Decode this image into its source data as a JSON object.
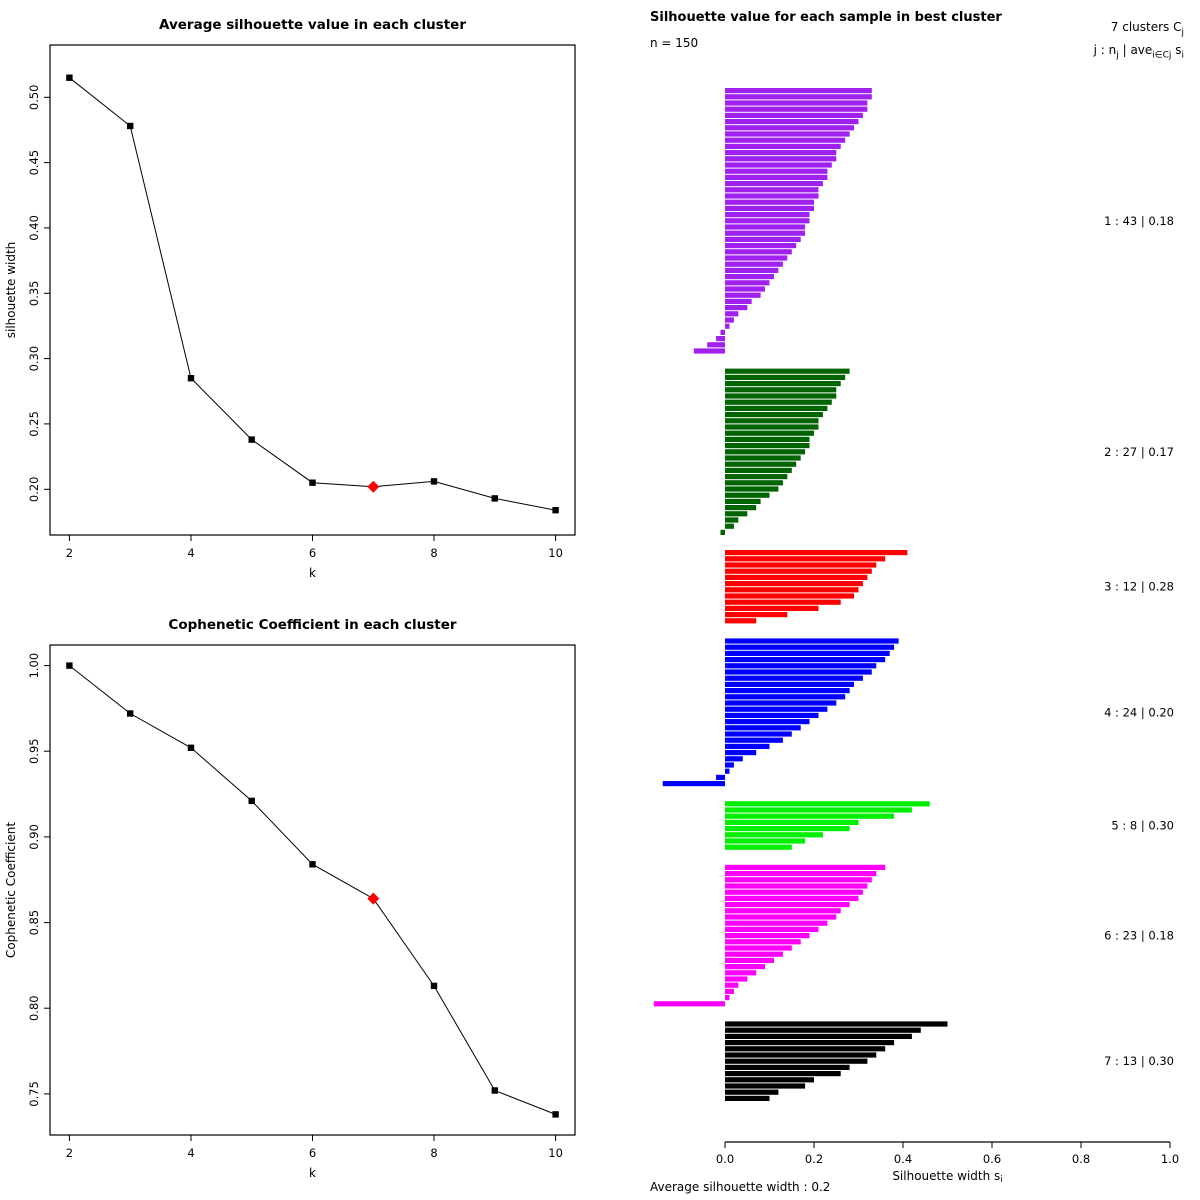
{
  "figure": {
    "background": "#ffffff",
    "text_color": "#000000"
  },
  "chart_data": [
    {
      "id": "avg_silhouette_by_k",
      "type": "line",
      "title": "Average silhouette value in each cluster",
      "xlabel": "k",
      "ylabel": "silhouette width",
      "x": [
        2,
        3,
        4,
        5,
        6,
        7,
        8,
        9,
        10
      ],
      "y": [
        0.515,
        0.478,
        0.285,
        0.238,
        0.205,
        0.202,
        0.206,
        0.193,
        0.184
      ],
      "xticks": [
        2,
        4,
        6,
        8,
        10
      ],
      "yticks": [
        "0.20",
        "0.25",
        "0.30",
        "0.35",
        "0.40",
        "0.45",
        "0.50"
      ],
      "ytick_vals": [
        0.2,
        0.25,
        0.3,
        0.35,
        0.4,
        0.45,
        0.5
      ],
      "xlim": [
        1.68,
        10.32
      ],
      "ylim": [
        0.165,
        0.54
      ],
      "highlight": {
        "x": 7,
        "color": "#ff0000",
        "shape": "diamond"
      },
      "line_color": "#000000",
      "marker_color": "#000000",
      "grid": false,
      "legend": "none"
    },
    {
      "id": "cophenetic_by_k",
      "type": "line",
      "title": "Cophenetic Coefficient in each cluster",
      "xlabel": "k",
      "ylabel": "Cophenetic Coefficient",
      "x": [
        2,
        3,
        4,
        5,
        6,
        7,
        8,
        9,
        10
      ],
      "y": [
        1.0,
        0.972,
        0.952,
        0.921,
        0.884,
        0.864,
        0.813,
        0.752,
        0.738
      ],
      "xticks": [
        2,
        4,
        6,
        8,
        10
      ],
      "yticks": [
        "0.75",
        "0.80",
        "0.85",
        "0.90",
        "0.95",
        "1.00"
      ],
      "ytick_vals": [
        0.75,
        0.8,
        0.85,
        0.9,
        0.95,
        1.0
      ],
      "xlim": [
        1.68,
        10.32
      ],
      "ylim": [
        0.726,
        1.012
      ],
      "highlight": {
        "x": 7,
        "color": "#ff0000",
        "shape": "diamond"
      },
      "line_color": "#000000",
      "marker_color": "#000000",
      "grid": false,
      "legend": "none"
    },
    {
      "id": "silhouette_samples",
      "type": "bar",
      "orientation": "horizontal",
      "title": "Silhouette value for each sample in best cluster",
      "n_label": "n = 150",
      "header_right": {
        "line1_text": "7 clusters C",
        "line1_sub": "j",
        "line2_seg1": "j :  n",
        "line2_seg1_sub": "j",
        "line2_seg2": " | ave",
        "line2_seg2_sub": "i∈Cj",
        "line2_seg3": "  s",
        "line2_seg3_sub": "i"
      },
      "xlabel_main": "Silhouette width s",
      "xlabel_sub": "i",
      "xticks": [
        "0.0",
        "0.2",
        "0.4",
        "0.6",
        "0.8",
        "1.0"
      ],
      "xtick_vals": [
        0,
        0.2,
        0.4,
        0.6,
        0.8,
        1.0
      ],
      "xlim": [
        0,
        1
      ],
      "footer_label": "Average silhouette width :  ",
      "footer_value": "0.2",
      "clusters": [
        {
          "j": 1,
          "n": 43,
          "avg": "0.18",
          "label": "1 :  43  |  0.18",
          "color": "#A020F0",
          "values": [
            0.33,
            0.33,
            0.32,
            0.32,
            0.31,
            0.3,
            0.29,
            0.28,
            0.27,
            0.26,
            0.25,
            0.25,
            0.24,
            0.23,
            0.23,
            0.22,
            0.21,
            0.21,
            0.2,
            0.2,
            0.19,
            0.19,
            0.18,
            0.18,
            0.17,
            0.16,
            0.15,
            0.14,
            0.13,
            0.12,
            0.11,
            0.1,
            0.09,
            0.08,
            0.06,
            0.05,
            0.03,
            0.02,
            0.01,
            -0.01,
            -0.02,
            -0.04,
            -0.07
          ]
        },
        {
          "j": 2,
          "n": 27,
          "avg": "0.17",
          "label": "2 :  27  |  0.17",
          "color": "#006400",
          "values": [
            0.28,
            0.27,
            0.26,
            0.25,
            0.25,
            0.24,
            0.23,
            0.22,
            0.21,
            0.21,
            0.2,
            0.19,
            0.19,
            0.18,
            0.17,
            0.16,
            0.15,
            0.14,
            0.13,
            0.12,
            0.1,
            0.08,
            0.07,
            0.05,
            0.03,
            0.02,
            -0.01
          ]
        },
        {
          "j": 3,
          "n": 12,
          "avg": "0.28",
          "label": "3 :  12  |  0.28",
          "color": "#FF0000",
          "values": [
            0.41,
            0.36,
            0.34,
            0.33,
            0.32,
            0.31,
            0.3,
            0.29,
            0.26,
            0.21,
            0.14,
            0.07
          ]
        },
        {
          "j": 4,
          "n": 24,
          "avg": "0.20",
          "label": "4 :  24  |  0.20",
          "color": "#0000FF",
          "values": [
            0.39,
            0.38,
            0.37,
            0.36,
            0.34,
            0.33,
            0.31,
            0.29,
            0.28,
            0.27,
            0.25,
            0.23,
            0.21,
            0.19,
            0.17,
            0.15,
            0.13,
            0.1,
            0.07,
            0.04,
            0.02,
            0.01,
            -0.02,
            -0.14
          ]
        },
        {
          "j": 5,
          "n": 8,
          "avg": "0.30",
          "label": "5 :  8  |  0.30",
          "color": "#00EE00",
          "values": [
            0.46,
            0.42,
            0.38,
            0.3,
            0.28,
            0.22,
            0.18,
            0.15
          ]
        },
        {
          "j": 6,
          "n": 23,
          "avg": "0.18",
          "label": "6 :  23  |  0.18",
          "color": "#FF00FF",
          "values": [
            0.36,
            0.34,
            0.33,
            0.32,
            0.31,
            0.3,
            0.28,
            0.26,
            0.25,
            0.23,
            0.21,
            0.19,
            0.17,
            0.15,
            0.13,
            0.11,
            0.09,
            0.07,
            0.05,
            0.03,
            0.02,
            0.01,
            -0.16
          ]
        },
        {
          "j": 7,
          "n": 13,
          "avg": "0.30",
          "label": "7 :  13  |  0.30",
          "color": "#000000",
          "values": [
            0.5,
            0.44,
            0.42,
            0.38,
            0.36,
            0.34,
            0.32,
            0.28,
            0.26,
            0.2,
            0.18,
            0.12,
            0.1
          ]
        }
      ]
    }
  ]
}
